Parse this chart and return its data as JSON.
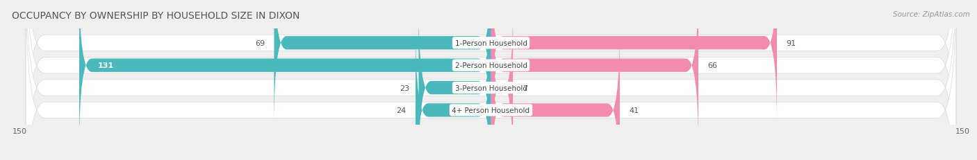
{
  "title": "OCCUPANCY BY OWNERSHIP BY HOUSEHOLD SIZE IN DIXON",
  "source": "Source: ZipAtlas.com",
  "categories": [
    "1-Person Household",
    "2-Person Household",
    "3-Person Household",
    "4+ Person Household"
  ],
  "owner_values": [
    69,
    131,
    23,
    24
  ],
  "renter_values": [
    91,
    66,
    7,
    41
  ],
  "owner_color": "#4ab8bc",
  "renter_color": "#f28cac",
  "axis_max": 150,
  "axis_min": -150,
  "bg_color": "#efefef",
  "title_fontsize": 10,
  "source_fontsize": 7.5,
  "label_fontsize": 8,
  "tick_fontsize": 8,
  "legend_fontsize": 8,
  "category_fontsize": 7.5
}
